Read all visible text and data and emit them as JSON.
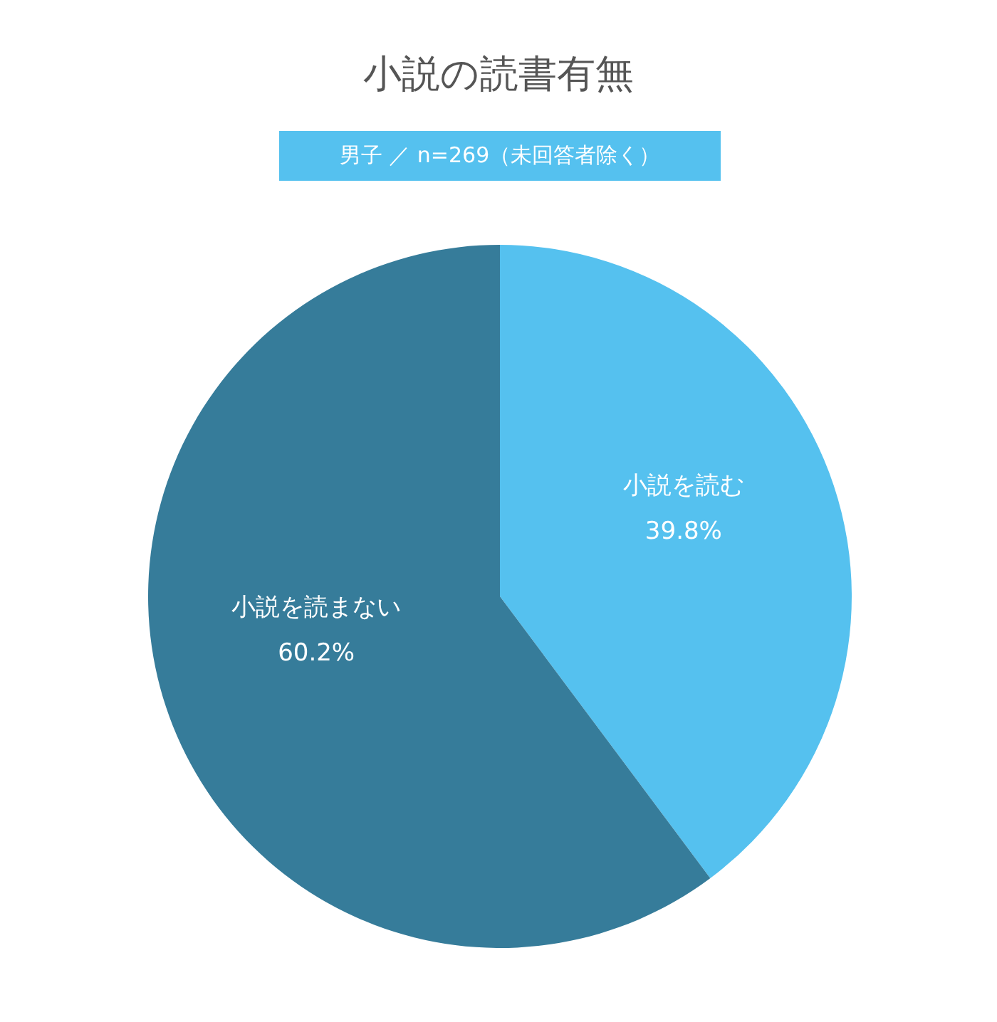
{
  "chart_data": {
    "type": "pie",
    "title": "小説の読書有無",
    "subtitle": "男子 ／ n=269（未回答者除く）",
    "categories": [
      "小説を読む",
      "小説を読まない"
    ],
    "values": [
      39.8,
      60.2
    ],
    "colors": [
      "#55c1ef",
      "#367c9a"
    ],
    "value_labels": [
      "39.8%",
      "60.2%"
    ],
    "legend": false
  }
}
